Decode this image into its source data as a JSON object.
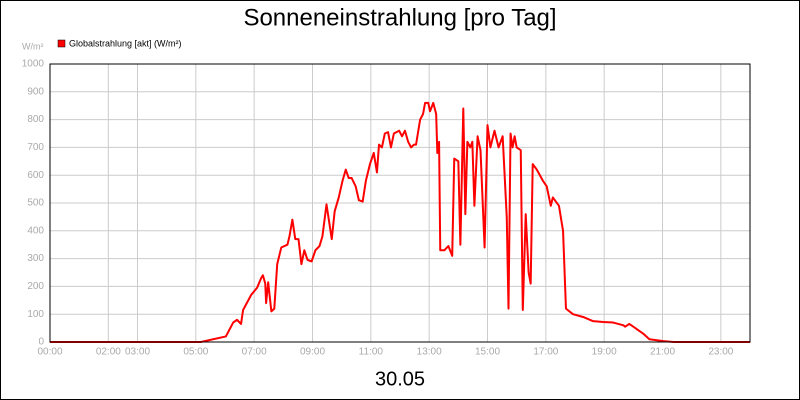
{
  "chart_data": {
    "type": "line",
    "title": "Sonneneinstrahlung [pro Tag]",
    "y_unit": "W/m²",
    "x_label": "30.05",
    "series": [
      {
        "name": "Globalstrahlung [akt] (W/m²)",
        "color": "#ff0000",
        "x": [
          0,
          5.17,
          6.03,
          6.28,
          6.41,
          6.55,
          6.62,
          6.9,
          7.1,
          7.24,
          7.3,
          7.38,
          7.41,
          7.48,
          7.59,
          7.69,
          7.79,
          7.93,
          8.14,
          8.21,
          8.31,
          8.41,
          8.52,
          8.62,
          8.72,
          8.83,
          8.97,
          9.1,
          9.24,
          9.34,
          9.48,
          9.66,
          9.76,
          9.9,
          10.03,
          10.14,
          10.24,
          10.34,
          10.48,
          10.59,
          10.72,
          10.83,
          10.97,
          11.1,
          11.21,
          11.28,
          11.38,
          11.48,
          11.59,
          11.69,
          11.79,
          11.97,
          12.07,
          12.17,
          12.28,
          12.38,
          12.48,
          12.55,
          12.69,
          12.79,
          12.86,
          12.97,
          13.03,
          13.14,
          13.24,
          13.28,
          13.34,
          13.38,
          13.52,
          13.66,
          13.79,
          13.86,
          14.0,
          14.07,
          14.17,
          14.24,
          14.31,
          14.41,
          14.48,
          14.55,
          14.66,
          14.76,
          14.9,
          15.0,
          15.1,
          15.24,
          15.38,
          15.52,
          15.66,
          15.72,
          15.79,
          15.86,
          15.93,
          16.0,
          16.14,
          16.21,
          16.31,
          16.41,
          16.48,
          16.55,
          16.69,
          16.9,
          17.03,
          17.17,
          17.24,
          17.31,
          17.45,
          17.59,
          17.69,
          17.93,
          18.28,
          18.62,
          18.97,
          19.31,
          19.66,
          19.72,
          19.86,
          20.0,
          20.34,
          20.55,
          21.03,
          21.38,
          24
        ],
        "values": [
          0,
          0,
          20,
          70,
          80,
          65,
          115,
          170,
          195,
          230,
          240,
          210,
          140,
          215,
          110,
          120,
          280,
          340,
          350,
          380,
          440,
          370,
          370,
          280,
          330,
          295,
          290,
          330,
          345,
          380,
          495,
          370,
          470,
          520,
          580,
          620,
          590,
          590,
          560,
          510,
          505,
          580,
          640,
          680,
          610,
          710,
          700,
          750,
          755,
          700,
          750,
          760,
          740,
          760,
          720,
          700,
          710,
          710,
          800,
          820,
          860,
          860,
          830,
          860,
          820,
          680,
          720,
          330,
          330,
          345,
          310,
          660,
          650,
          350,
          840,
          460,
          720,
          700,
          720,
          490,
          740,
          690,
          340,
          780,
          700,
          760,
          700,
          740,
          450,
          120,
          750,
          700,
          740,
          700,
          690,
          115,
          460,
          250,
          210,
          640,
          620,
          580,
          560,
          490,
          520,
          510,
          490,
          400,
          120,
          100,
          90,
          75,
          72,
          70,
          60,
          55,
          65,
          55,
          30,
          10,
          3,
          0,
          0
        ]
      }
    ],
    "xlim": [
      0,
      24
    ],
    "ylim": [
      0,
      1000
    ],
    "xticks": [
      {
        "value": 0,
        "label": "00:00"
      },
      {
        "value": 2,
        "label": "02:00"
      },
      {
        "value": 3,
        "label": "03:00"
      },
      {
        "value": 5,
        "label": "05:00"
      },
      {
        "value": 7,
        "label": "07:00"
      },
      {
        "value": 9,
        "label": "09:00"
      },
      {
        "value": 11,
        "label": "11:00"
      },
      {
        "value": 13,
        "label": "13:00"
      },
      {
        "value": 15,
        "label": "15:00"
      },
      {
        "value": 17,
        "label": "17:00"
      },
      {
        "value": 19,
        "label": "19:00"
      },
      {
        "value": 21,
        "label": "21:00"
      },
      {
        "value": 23,
        "label": "23:00"
      }
    ],
    "yticks": [
      0,
      100,
      200,
      300,
      400,
      500,
      600,
      700,
      800,
      900,
      1000
    ],
    "grid": true
  }
}
